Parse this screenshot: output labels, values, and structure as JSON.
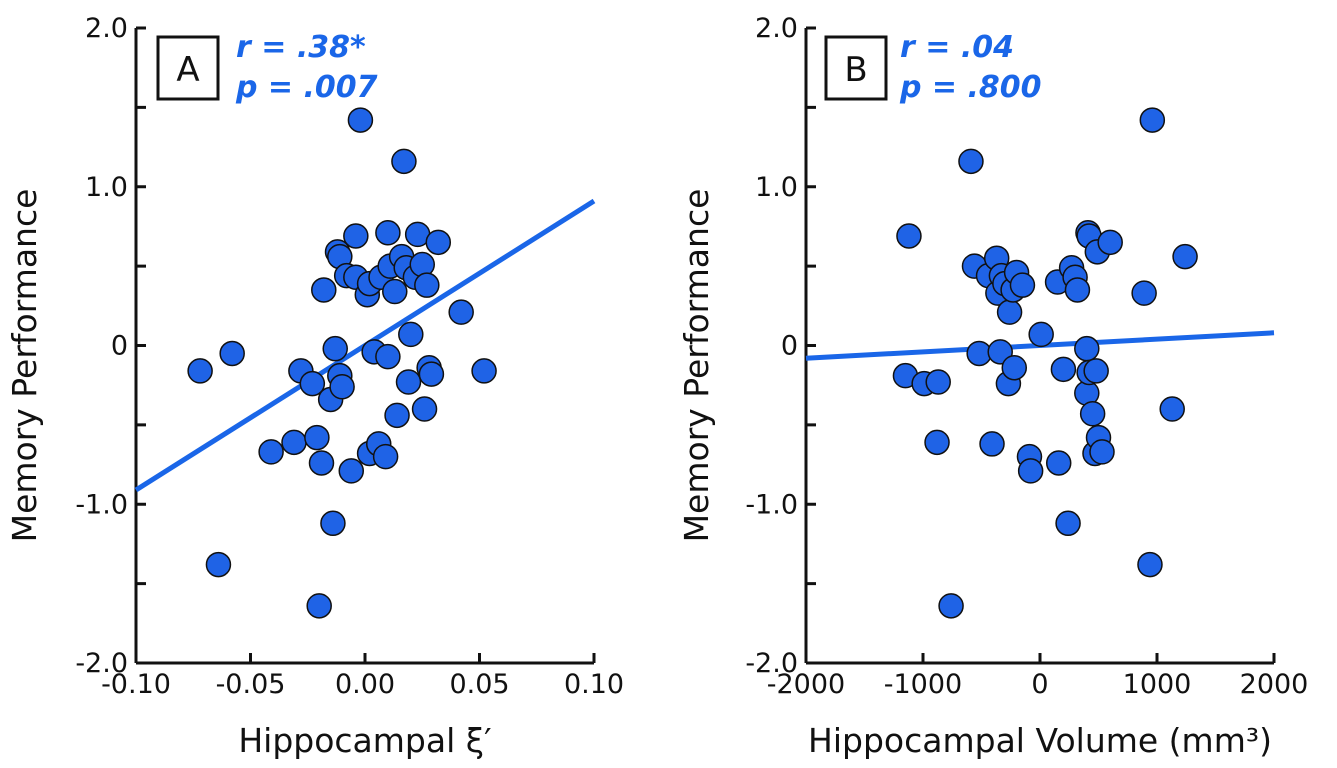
{
  "colors": {
    "point_fill": "#1f63e6",
    "point_stroke": "#111111",
    "line": "#1a66e8",
    "stat_text": "#1a66e8",
    "axis": "#111111"
  },
  "chart_data": [
    {
      "type": "scatter",
      "panel_label": "A",
      "annotation": {
        "r": "r = .38*",
        "p": "p = .007"
      },
      "xlabel": "Hippocampal ξ′",
      "ylabel": "Memory Performance",
      "xlim": [
        -0.1,
        0.1
      ],
      "ylim": [
        -2.0,
        2.0
      ],
      "x_ticks": [
        -0.1,
        -0.05,
        0.0,
        0.05,
        0.1
      ],
      "x_tick_labels": [
        "-0.10",
        "-0.05",
        "0.00",
        "0.05",
        "0.10"
      ],
      "y_ticks": [
        -2.0,
        -1.5,
        -1.0,
        -0.5,
        0,
        0.5,
        1.0,
        1.5,
        2.0
      ],
      "y_tick_labels": [
        "-2.0",
        "",
        "-1.0",
        "",
        "0",
        "",
        "1.0",
        "",
        "2.0"
      ],
      "grid": false,
      "fit_line": {
        "x": [
          -0.1,
          0.1
        ],
        "y": [
          -0.91,
          0.91
        ]
      },
      "points": [
        {
          "x": -0.072,
          "y": -0.16
        },
        {
          "x": -0.064,
          "y": -1.38
        },
        {
          "x": -0.058,
          "y": -0.05
        },
        {
          "x": -0.041,
          "y": -0.67
        },
        {
          "x": -0.031,
          "y": -0.61
        },
        {
          "x": -0.028,
          "y": -0.16
        },
        {
          "x": -0.023,
          "y": -0.24
        },
        {
          "x": -0.021,
          "y": -0.58
        },
        {
          "x": -0.02,
          "y": -1.64
        },
        {
          "x": -0.019,
          "y": -0.74
        },
        {
          "x": -0.018,
          "y": 0.35
        },
        {
          "x": -0.015,
          "y": -0.34
        },
        {
          "x": -0.014,
          "y": -1.12
        },
        {
          "x": -0.013,
          "y": -0.02
        },
        {
          "x": -0.012,
          "y": 0.59
        },
        {
          "x": -0.011,
          "y": 0.56
        },
        {
          "x": -0.011,
          "y": -0.19
        },
        {
          "x": -0.01,
          "y": -0.26
        },
        {
          "x": -0.008,
          "y": 0.44
        },
        {
          "x": -0.006,
          "y": -0.79
        },
        {
          "x": -0.004,
          "y": 0.69
        },
        {
          "x": -0.004,
          "y": 0.43
        },
        {
          "x": -0.002,
          "y": 1.42
        },
        {
          "x": 0.001,
          "y": 0.32
        },
        {
          "x": 0.002,
          "y": 0.39
        },
        {
          "x": 0.002,
          "y": -0.68
        },
        {
          "x": 0.004,
          "y": -0.04
        },
        {
          "x": 0.006,
          "y": -0.62
        },
        {
          "x": 0.007,
          "y": 0.43
        },
        {
          "x": 0.009,
          "y": -0.7
        },
        {
          "x": 0.01,
          "y": 0.71
        },
        {
          "x": 0.01,
          "y": -0.07
        },
        {
          "x": 0.011,
          "y": 0.5
        },
        {
          "x": 0.013,
          "y": 0.34
        },
        {
          "x": 0.014,
          "y": -0.44
        },
        {
          "x": 0.016,
          "y": 0.56
        },
        {
          "x": 0.017,
          "y": 1.16
        },
        {
          "x": 0.018,
          "y": 0.49
        },
        {
          "x": 0.019,
          "y": -0.23
        },
        {
          "x": 0.02,
          "y": 0.07
        },
        {
          "x": 0.022,
          "y": 0.43
        },
        {
          "x": 0.023,
          "y": 0.7
        },
        {
          "x": 0.025,
          "y": 0.51
        },
        {
          "x": 0.026,
          "y": -0.4
        },
        {
          "x": 0.027,
          "y": 0.38
        },
        {
          "x": 0.028,
          "y": -0.14
        },
        {
          "x": 0.029,
          "y": -0.18
        },
        {
          "x": 0.032,
          "y": 0.65
        },
        {
          "x": 0.042,
          "y": 0.21
        },
        {
          "x": 0.052,
          "y": -0.16
        }
      ]
    },
    {
      "type": "scatter",
      "panel_label": "B",
      "annotation": {
        "r": "r = .04",
        "p": "p = .800"
      },
      "xlabel": "Hippocampal Volume (mm³)",
      "ylabel": "Memory Performance",
      "xlim": [
        -2000,
        2000
      ],
      "ylim": [
        -2.0,
        2.0
      ],
      "x_ticks": [
        -2000,
        -1000,
        0,
        1000,
        2000
      ],
      "x_tick_labels": [
        "-2000",
        "-1000",
        "0",
        "1000",
        "2000"
      ],
      "y_ticks": [
        -2.0,
        -1.5,
        -1.0,
        -0.5,
        0,
        0.5,
        1.0,
        1.5,
        2.0
      ],
      "y_tick_labels": [
        "-2.0",
        "",
        "-1.0",
        "",
        "0",
        "",
        "1.0",
        "",
        "2.0"
      ],
      "grid": false,
      "fit_line": {
        "x": [
          -2000,
          2000
        ],
        "y": [
          -0.08,
          0.08
        ]
      },
      "points": [
        {
          "x": -1150,
          "y": -0.19
        },
        {
          "x": -1120,
          "y": 0.69
        },
        {
          "x": -990,
          "y": -0.24
        },
        {
          "x": -870,
          "y": -0.23
        },
        {
          "x": -880,
          "y": -0.61
        },
        {
          "x": -760,
          "y": -1.64
        },
        {
          "x": -590,
          "y": 1.16
        },
        {
          "x": -560,
          "y": 0.5
        },
        {
          "x": -520,
          "y": -0.05
        },
        {
          "x": -440,
          "y": 0.44
        },
        {
          "x": -410,
          "y": -0.62
        },
        {
          "x": -370,
          "y": 0.55
        },
        {
          "x": -360,
          "y": 0.33
        },
        {
          "x": -340,
          "y": -0.04
        },
        {
          "x": -330,
          "y": 0.44
        },
        {
          "x": -300,
          "y": 0.39
        },
        {
          "x": -270,
          "y": -0.24
        },
        {
          "x": -260,
          "y": 0.21
        },
        {
          "x": -230,
          "y": 0.35
        },
        {
          "x": -220,
          "y": -0.14
        },
        {
          "x": -200,
          "y": 0.46
        },
        {
          "x": -150,
          "y": 0.38
        },
        {
          "x": -90,
          "y": -0.7
        },
        {
          "x": -80,
          "y": -0.79
        },
        {
          "x": 10,
          "y": 0.07
        },
        {
          "x": 150,
          "y": 0.4
        },
        {
          "x": 160,
          "y": -0.74
        },
        {
          "x": 200,
          "y": -0.15
        },
        {
          "x": 240,
          "y": -1.12
        },
        {
          "x": 270,
          "y": 0.49
        },
        {
          "x": 300,
          "y": 0.43
        },
        {
          "x": 320,
          "y": 0.35
        },
        {
          "x": 400,
          "y": -0.02
        },
        {
          "x": 400,
          "y": -0.3
        },
        {
          "x": 410,
          "y": 0.71
        },
        {
          "x": 420,
          "y": 0.69
        },
        {
          "x": 420,
          "y": -0.17
        },
        {
          "x": 450,
          "y": -0.43
        },
        {
          "x": 470,
          "y": -0.68
        },
        {
          "x": 480,
          "y": -0.16
        },
        {
          "x": 490,
          "y": 0.59
        },
        {
          "x": 500,
          "y": -0.58
        },
        {
          "x": 530,
          "y": -0.67
        },
        {
          "x": 600,
          "y": 0.65
        },
        {
          "x": 890,
          "y": 0.33
        },
        {
          "x": 940,
          "y": -1.38
        },
        {
          "x": 960,
          "y": 1.42
        },
        {
          "x": 1130,
          "y": -0.4
        },
        {
          "x": 1240,
          "y": 0.56
        }
      ]
    }
  ]
}
